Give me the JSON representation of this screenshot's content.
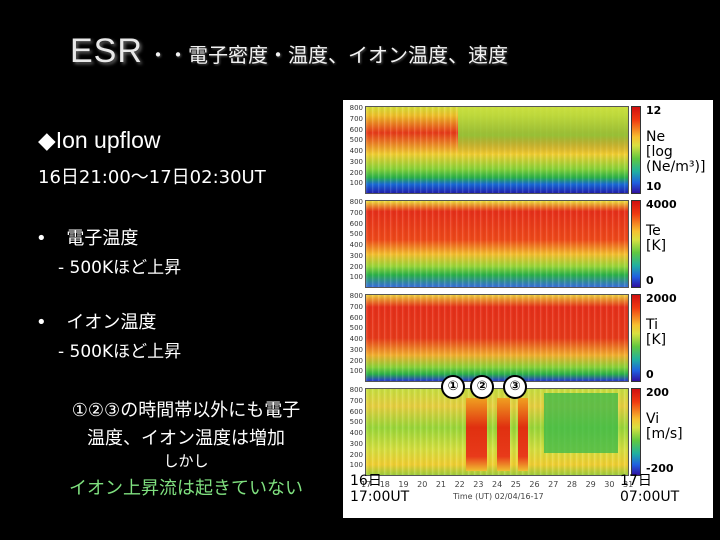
{
  "title": {
    "main": "ESR",
    "rest": "・・電子密度・温度、イオン温度、速度"
  },
  "left": {
    "heading": "◆Ion upflow",
    "time_range": "16日21:00～17日02:30UT",
    "bullet1_title": "電子温度",
    "bullet1_note": "- 500Kほど上昇",
    "bullet2_title": "イオン温度",
    "bullet2_note": "- 500Kほど上昇",
    "conclusion1": "①②③の時間帯以外にも電子",
    "conclusion2": "温度、イオン温度は増加",
    "conclusion3": "しかし",
    "conclusion4": "イオン上昇流は起きていない",
    "bullet_symbol": "•"
  },
  "figure": {
    "y_ticks": [
      "800",
      "700",
      "600",
      "500",
      "400",
      "300",
      "200",
      "100"
    ],
    "x_ticks": [
      "17",
      "18",
      "19",
      "20",
      "21",
      "22",
      "23",
      "24",
      "25",
      "26",
      "27",
      "28",
      "29",
      "30",
      "31"
    ],
    "x_axis_label": "Time (UT) 02/04/16-17",
    "panels": [
      {
        "name": "Ne",
        "label_lines": [
          "Ne",
          "[log",
          "(Ne/m³)]"
        ],
        "max": "12",
        "min": "10"
      },
      {
        "name": "Te",
        "label_lines": [
          "Te",
          "[K]"
        ],
        "max": "4000",
        "min": "0"
      },
      {
        "name": "Ti",
        "label_lines": [
          "Ti",
          "[K]"
        ],
        "max": "2000",
        "min": "0"
      },
      {
        "name": "Vi",
        "label_lines": [
          "Vi",
          "[m/s]"
        ],
        "max": "200",
        "min": "-200"
      }
    ],
    "markers": [
      "①",
      "②",
      "③"
    ],
    "start_label": [
      "16日",
      "17:00UT"
    ],
    "end_label": [
      "17日",
      "07:00UT"
    ]
  },
  "colors": {
    "green_text": "#7fe07f"
  }
}
